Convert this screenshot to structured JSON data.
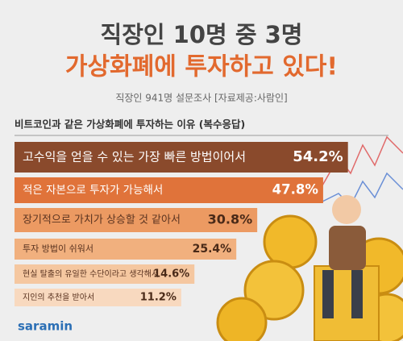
{
  "chart_data": {
    "type": "bar",
    "orientation": "horizontal",
    "title": "직장인 10명 중 3명",
    "subtitle": "가상화폐에 투자하고 있다!",
    "source": "직장인 941명 설문조사 [자료제공:사람인]",
    "axis_title": "비트코인과 같은 가상화폐에 투자하는 이유 (복수응답)",
    "categories": [
      "고수익을 얻을 수 있는 가장 빠른 방법이어서",
      "적은 자본으로 투자가 가능해서",
      "장기적으로 가치가 상승할 것 같아서",
      "투자 방법이 쉬워서",
      "현실 탈출의 유일한 수단이라고 생각해서",
      "지인의 추천을 받아서"
    ],
    "values": [
      54.2,
      47.8,
      30.8,
      25.4,
      14.6,
      11.2
    ],
    "value_labels": [
      "54.2%",
      "47.8%",
      "30.8%",
      "25.4%",
      "14.6%",
      "11.2%"
    ],
    "colors": [
      "#8a4a2c",
      "#e0733a",
      "#ec9a62",
      "#f1b07e",
      "#f5c7a0",
      "#f8d9bf"
    ]
  },
  "logo": "saramin"
}
